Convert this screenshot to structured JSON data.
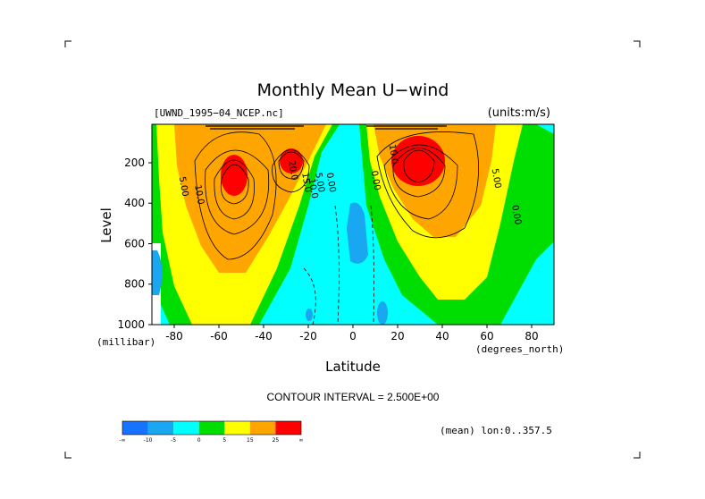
{
  "chart_data": {
    "type": "contour",
    "title": "Monthly Mean U−wind",
    "dataset_label": "[UWND_1995−04_NCEP.nc]",
    "units_label": "(units:m/s)",
    "xlabel": "Latitude",
    "x_units": "(degrees_north)",
    "ylabel": "Level",
    "y_units": "(millibar)",
    "x_ticks": [
      -80,
      -60,
      -40,
      -20,
      0,
      20,
      40,
      60,
      80
    ],
    "y_ticks": [
      200,
      400,
      600,
      800,
      1000
    ],
    "xlim": [
      -90,
      90
    ],
    "ylim": [
      1000,
      10
    ],
    "y_inverted": true,
    "contour_interval_text": "CONTOUR INTERVAL = 2.500E+00",
    "mean_note": "(mean) lon:0..357.5",
    "colorbar": {
      "colors": [
        "#1573ff",
        "#18a7f0",
        "#00ffff",
        "#00dd00",
        "#ffff00",
        "#ffa500",
        "#ff0000"
      ],
      "tick_labels": [
        "-∞",
        "-10",
        "-5",
        "0",
        "5",
        "15",
        "25",
        "∞"
      ]
    },
    "contour_labels": [
      {
        "text": "5.00",
        "lat": -77,
        "lev": 320
      },
      {
        "text": "10.0",
        "lat": -70,
        "lev": 360
      },
      {
        "text": "20.0",
        "lat": -28,
        "lev": 240
      },
      {
        "text": "15.0",
        "lat": -22,
        "lev": 300
      },
      {
        "text": "10.0",
        "lat": -19,
        "lev": 330
      },
      {
        "text": "5.00",
        "lat": -16,
        "lev": 300
      },
      {
        "text": "0.00",
        "lat": -11,
        "lev": 300
      },
      {
        "text": "0.00",
        "lat": 9,
        "lev": 290
      },
      {
        "text": "10.0",
        "lat": 17,
        "lev": 160
      },
      {
        "text": "5.00",
        "lat": 63,
        "lev": 280
      },
      {
        "text": "0.00",
        "lat": 72,
        "lev": 460
      }
    ],
    "features": [
      {
        "desc": "SH jet core",
        "lat": -55,
        "lev": 250,
        "value_range": "25+"
      },
      {
        "desc": "SH subtropical jet",
        "lat": -28,
        "lev": 200,
        "value_range": "25+"
      },
      {
        "desc": "NH subtropical jet",
        "lat": 30,
        "lev": 200,
        "value_range": "25+"
      },
      {
        "desc": "equatorial easterlies",
        "lat": 3,
        "lev": 500,
        "value_range": "-10 to -5"
      }
    ]
  }
}
